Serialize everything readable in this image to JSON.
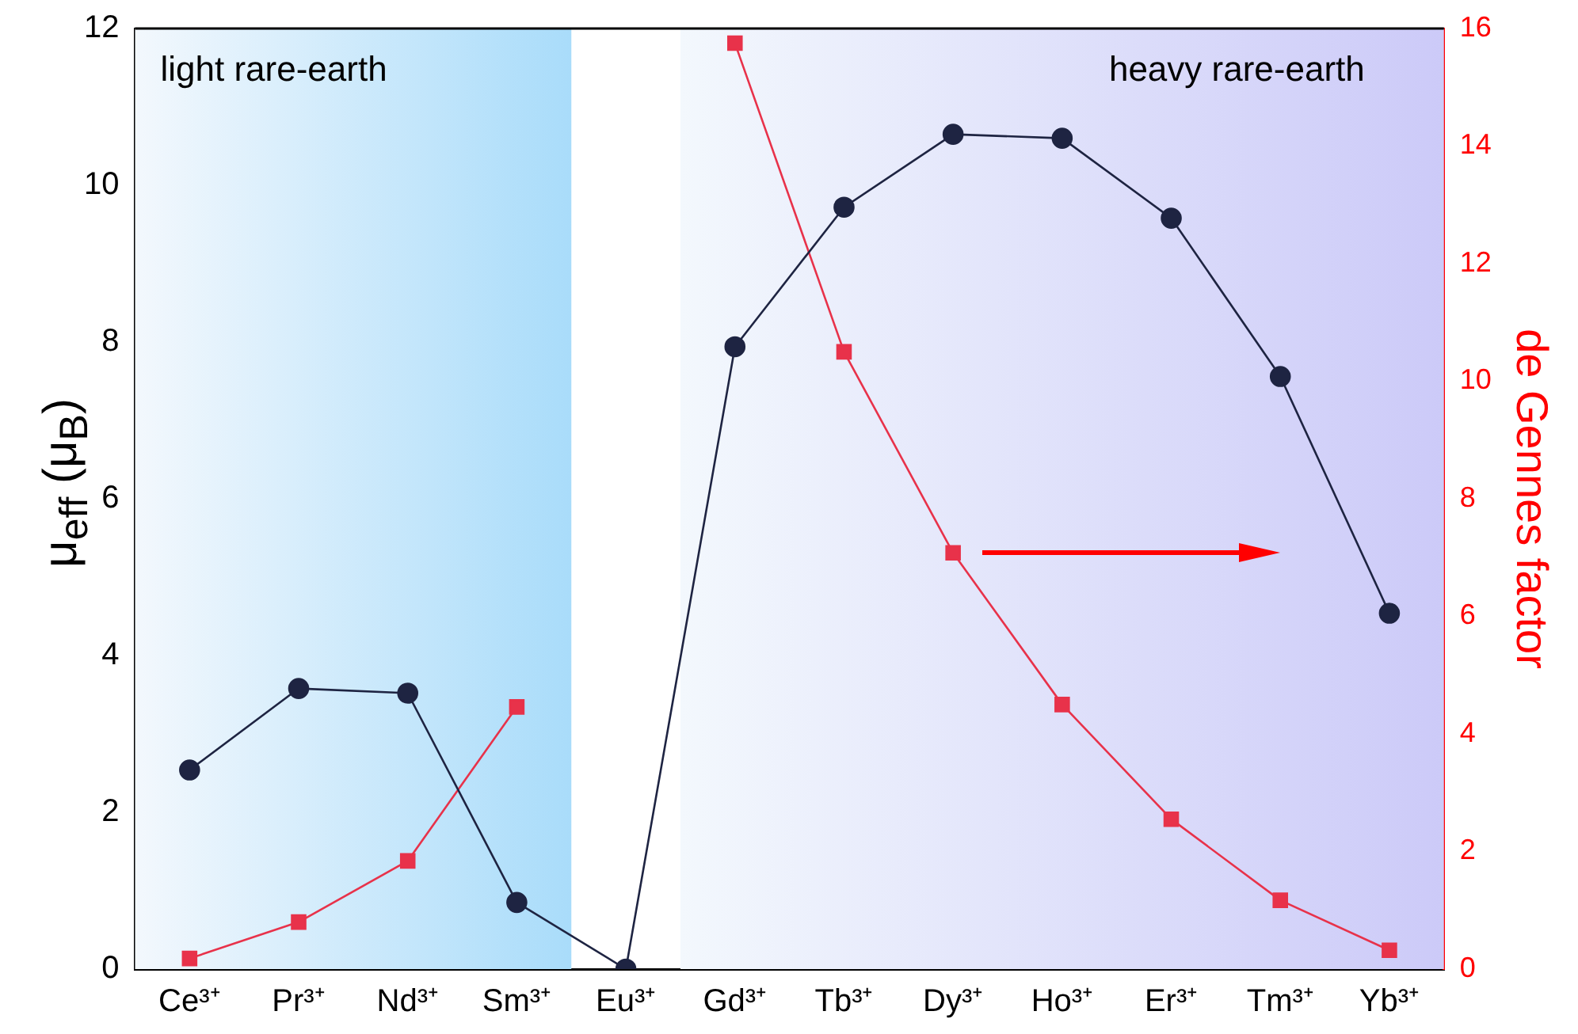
{
  "chart_data": {
    "type": "line",
    "categories": [
      "Ce³⁺",
      "Pr³⁺",
      "Nd³⁺",
      "Sm³⁺",
      "Eu³⁺",
      "Gd³⁺",
      "Tb³⁺",
      "Dy³⁺",
      "Ho³⁺",
      "Er³⁺",
      "Tm³⁺",
      "Yb³⁺"
    ],
    "ylabel": "μ$_{eff}$ (μ$_{B}$)",
    "y2label": "de Gennes factor",
    "series": [
      {
        "color": "#1e2442",
        "marker": "circle",
        "values": [
          2.54,
          3.58,
          3.52,
          0.85,
          0,
          7.94,
          9.72,
          10.65,
          10.6,
          9.58,
          7.56,
          4.54
        ]
      },
      {
        "color": "#e8324a",
        "marker": "square",
        "axis": "y2",
        "values": [
          0.18,
          0.8,
          1.84,
          4.46,
          null,
          15.75,
          10.5,
          7.08,
          4.5,
          2.55,
          1.17,
          0.32
        ]
      }
    ],
    "ylim": [
      0,
      12
    ],
    "yticks": [
      0,
      2,
      4,
      6,
      8,
      10,
      12
    ],
    "y2lim": [
      0,
      16
    ],
    "y2ticks": [
      0,
      2,
      4,
      6,
      8,
      10,
      12,
      14,
      16
    ],
    "bands": [
      {
        "axis": "x",
        "from": "Ce³⁺",
        "to": "Sm³⁺",
        "label": "light rare-earth",
        "color": "#a9dcfa"
      },
      {
        "axis": "x",
        "from": "Gd³⁺",
        "to": "Yb³⁺",
        "label": "heavy rare-earth",
        "color": "#cccaf8"
      }
    ],
    "grid": false,
    "legend": false
  }
}
